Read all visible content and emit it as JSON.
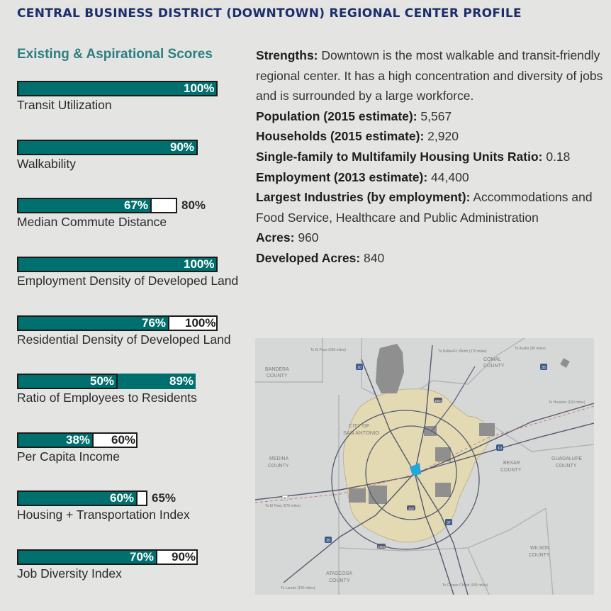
{
  "page_title": "CENTRAL BUSINESS DISTRICT (DOWNTOWN) REGIONAL CENTER PROFILE",
  "scores_heading": "Existing & Aspirational Scores",
  "scores": [
    {
      "label": "Transit Utilization",
      "existing": 100,
      "aspirational": 100,
      "existing_label": "100%",
      "aspirational_label": ""
    },
    {
      "label": "Walkability",
      "existing": 90,
      "aspirational": 90,
      "existing_label": "90%",
      "aspirational_label": ""
    },
    {
      "label": "Median Commute Distance",
      "existing": 67,
      "aspirational": 80,
      "existing_label": "67%",
      "aspirational_label": "80%"
    },
    {
      "label": "Employment Density of Developed Land",
      "existing": 100,
      "aspirational": 100,
      "existing_label": "100%",
      "aspirational_label": ""
    },
    {
      "label": "Residential Density of Developed Land",
      "existing": 76,
      "aspirational": 100,
      "existing_label": "76%",
      "aspirational_label": "100%"
    },
    {
      "label": "Ratio of Employees to Residents",
      "existing": 50,
      "aspirational": 89,
      "existing_label": "50%",
      "aspirational_label": "89%"
    },
    {
      "label": "Per Capita Income",
      "existing": 38,
      "aspirational": 60,
      "existing_label": "38%",
      "aspirational_label": "60%"
    },
    {
      "label": "Housing + Transportation Index",
      "existing": 60,
      "aspirational": 65,
      "existing_label": "60%",
      "aspirational_label": "65%"
    },
    {
      "label": "Job Diversity Index",
      "existing": 70,
      "aspirational": 90,
      "existing_label": "70%",
      "aspirational_label": "90%"
    }
  ],
  "profile": {
    "strengths_label": "Strengths:",
    "strengths_text": " Downtown is the most walkable and transit-friendly regional center. It has a high concentration and diversity of jobs and is surrounded by a large workforce.",
    "population_label": "Population (2015 estimate):",
    "population_value": " 5,567",
    "households_label": "Households (2015 estimate):",
    "households_value": " 2,920",
    "ratio_label": "Single-family to Multifamily Housing Units Ratio:",
    "ratio_value": " 0.18",
    "employment_label": "Employment (2013 estimate):",
    "employment_value": " 44,400",
    "industries_label": "Largest Industries (by employment):",
    "industries_value": " Accommodations and Food Service, Healthcare and Public Administration",
    "acres_label": "Acres:",
    "acres_value": " 960",
    "developed_label": "Developed Acres:",
    "developed_value": " 840"
  },
  "map": {
    "counties": [
      "BANDERA COUNTY",
      "COMAL COUNTY",
      "MEDINA COUNTY",
      "BEXAR COUNTY",
      "GUADALUPE COUNTY",
      "WILSON COUNTY",
      "ATASCOSA COUNTY"
    ],
    "city_label": "CITY OF SAN ANTONIO",
    "highways": [
      "10",
      "35",
      "410",
      "1604",
      "37",
      "90"
    ],
    "destinations": [
      "To El Paso (550 miles)",
      "To Dallas/Ft. Worth (270 miles)",
      "To Austin (80 miles)",
      "To Houston (190 miles)",
      "To El Paso (575 miles)",
      "To Laredo (155 miles)",
      "To Corpus Christi (145 miles)"
    ],
    "colors": {
      "land": "#d6d7d7",
      "county": "#c8c9ca",
      "city": "#e3d9b3",
      "highlight": "#22a7dd",
      "road": "#555a6e"
    }
  }
}
